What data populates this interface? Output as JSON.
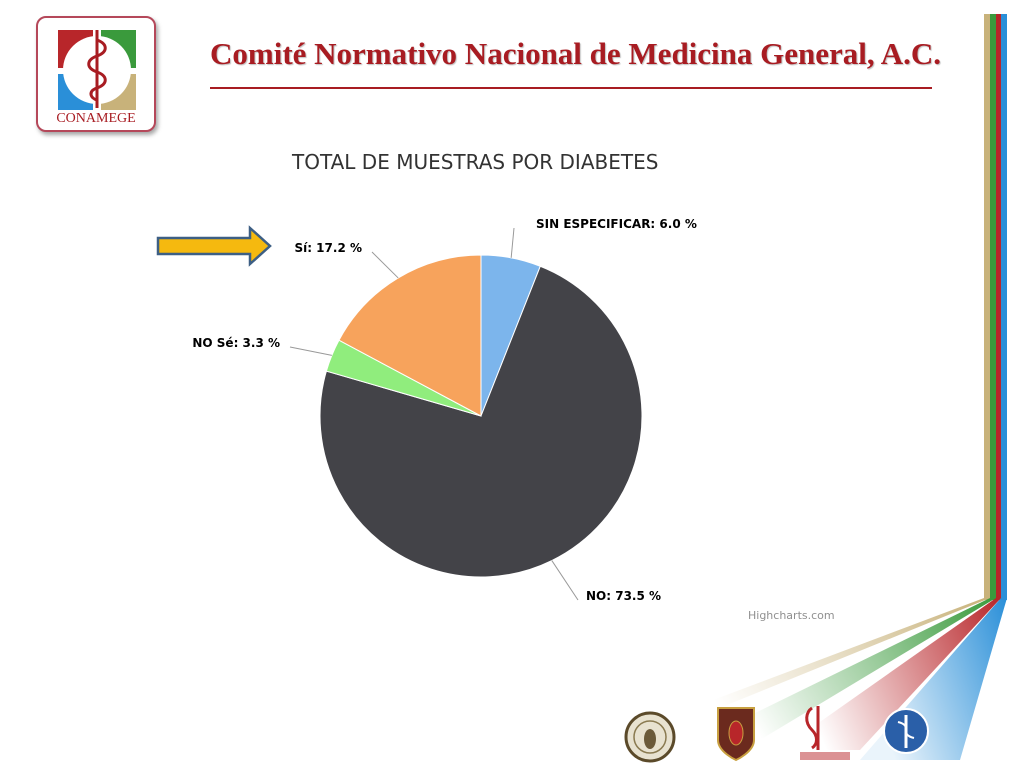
{
  "header": {
    "title": "Comité Normativo Nacional de Medicina General, A.C.",
    "logo_text": "CONAMEGE"
  },
  "colors": {
    "brand_red": "#a81c22",
    "stripe_gold": "#c8b27a",
    "stripe_green": "#3a9a3c",
    "stripe_red": "#b8262a",
    "stripe_blue": "#2a8fd8"
  },
  "credit": "Highcharts.com",
  "emblems": [
    "seal-emblem-1",
    "shield-emblem",
    "caduceus-emblem",
    "blue-emblem"
  ],
  "chart_data": {
    "type": "pie",
    "title": "TOTAL DE MUESTRAS POR DIABETES",
    "slices": [
      {
        "name": "SIN ESPECIFICAR",
        "value": 6.0,
        "label": "SIN ESPECIFICAR: 6.0 %",
        "color": "#7cb5ec"
      },
      {
        "name": "NO",
        "value": 73.5,
        "label": "NO: 73.5 %",
        "color": "#434348"
      },
      {
        "name": "NO Sé",
        "value": 3.3,
        "label": "NO Sé: 3.3 %",
        "color": "#90ed7d"
      },
      {
        "name": "Sí",
        "value": 17.2,
        "label": "Sí: 17.2 %",
        "color": "#f7a35c"
      }
    ],
    "annotation": "highlight-arrow pointing to Sí"
  }
}
